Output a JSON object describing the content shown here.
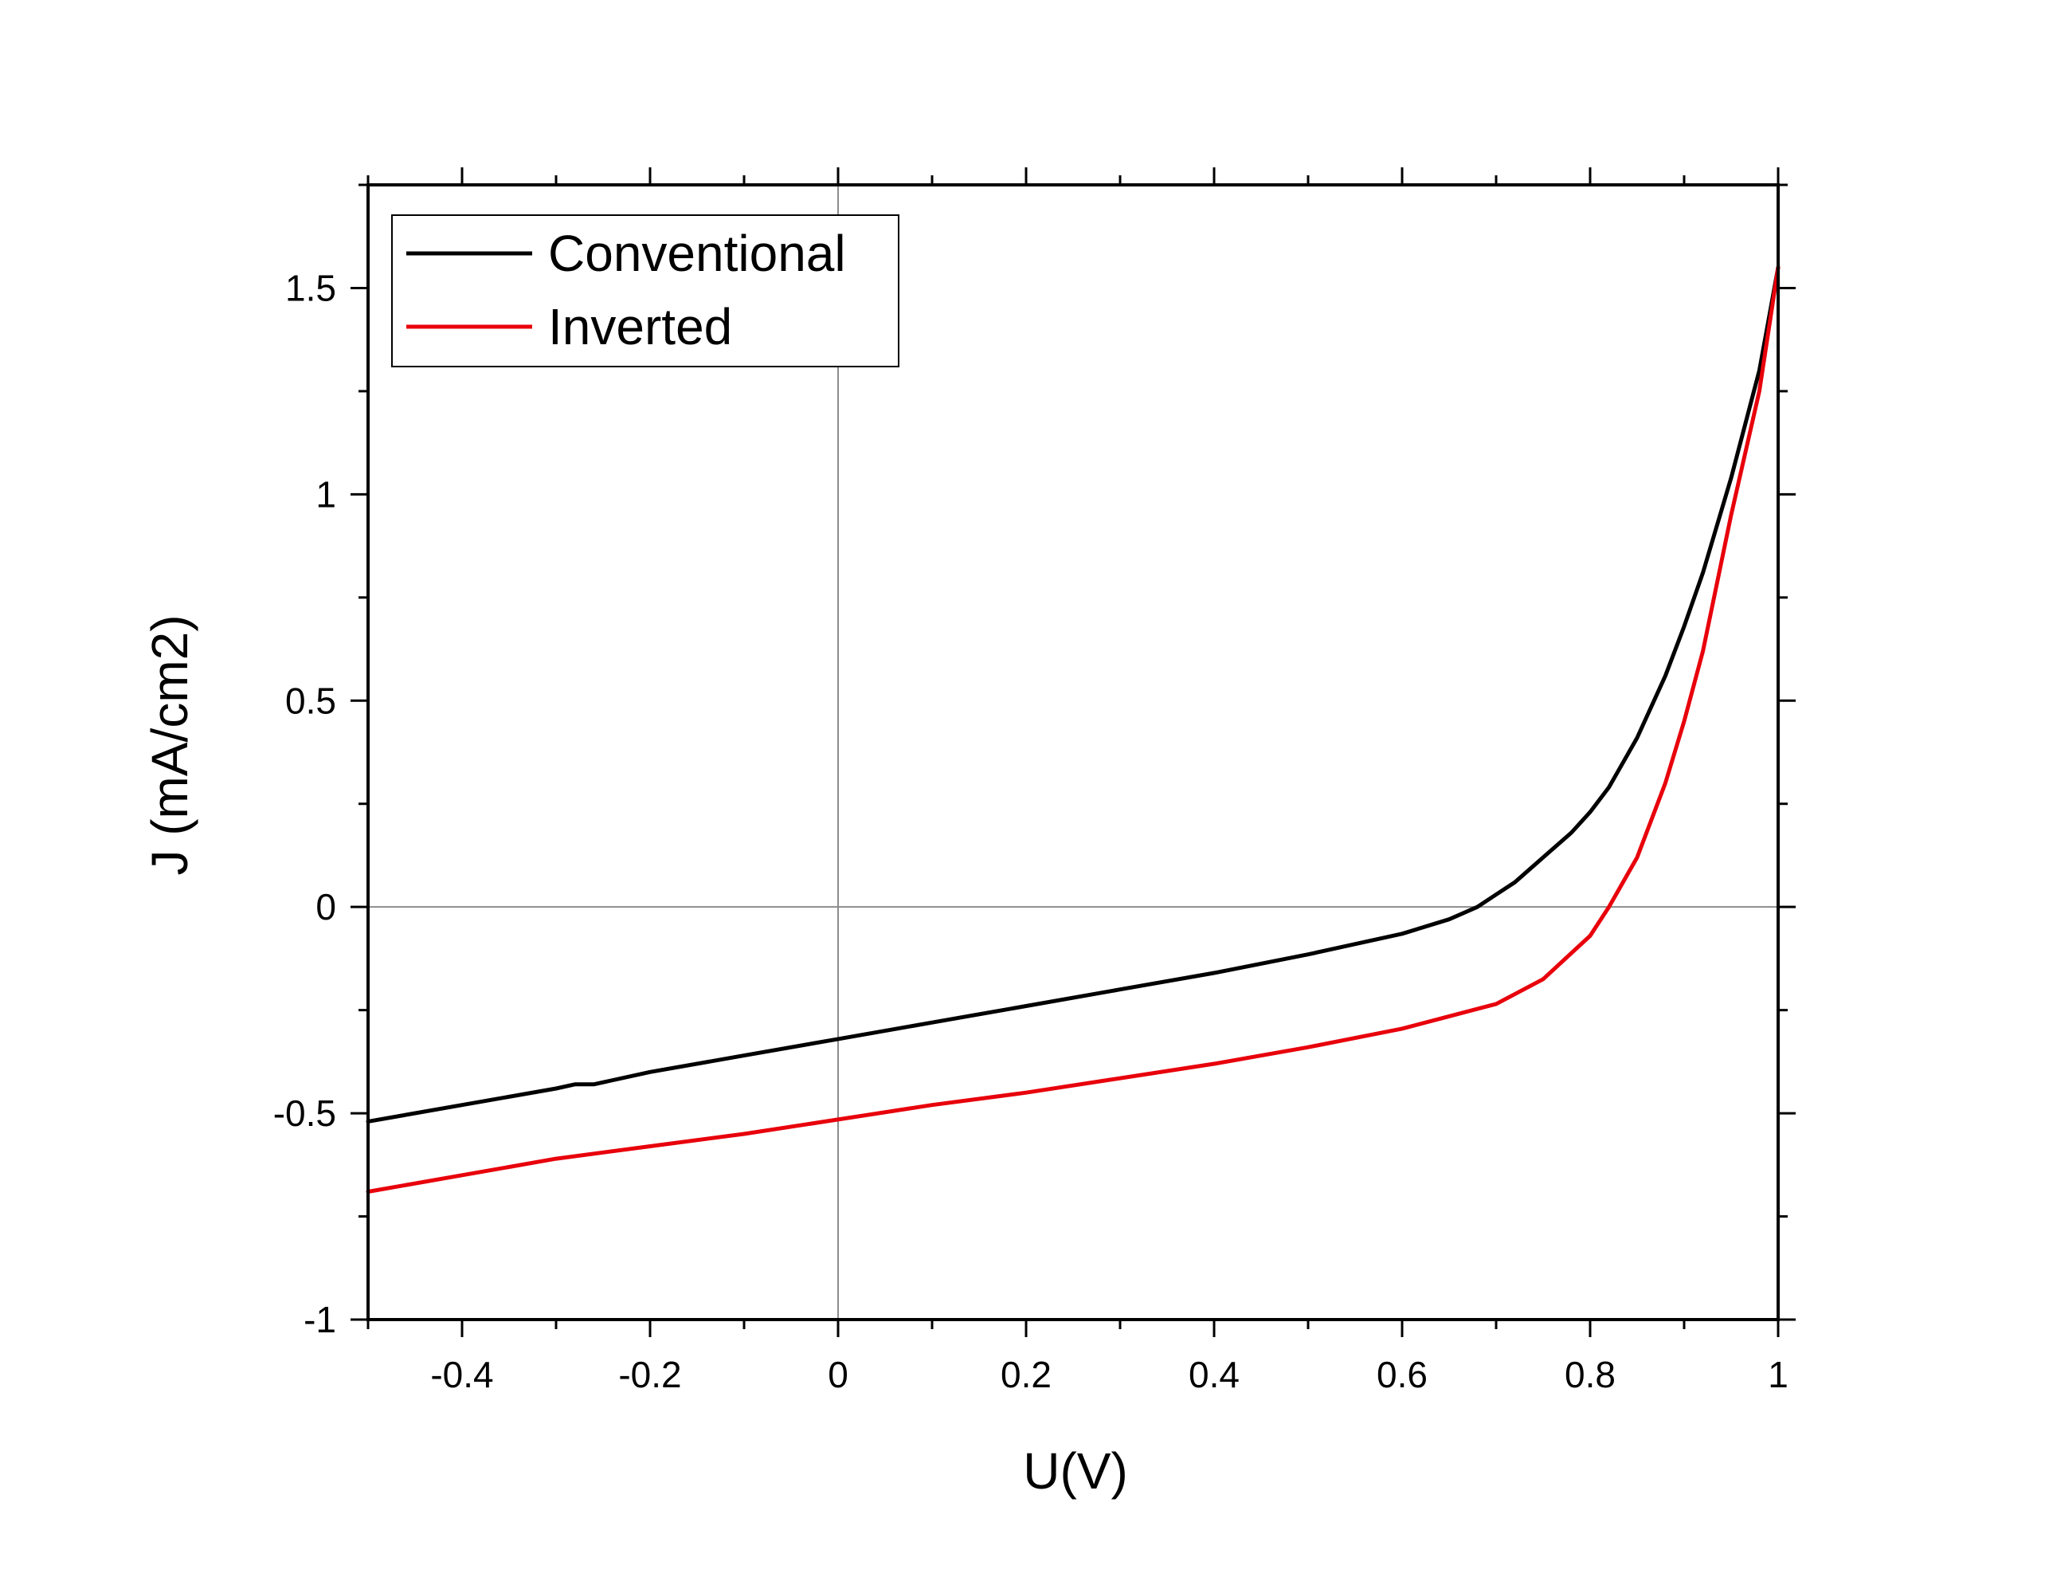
{
  "chart_data": {
    "type": "line",
    "title": "",
    "xlabel": "U(V)",
    "ylabel": "J (mA/cm2)",
    "xlim": [
      -0.5,
      1.0
    ],
    "ylim": [
      -1.0,
      1.75
    ],
    "xticks": [
      -0.4,
      -0.2,
      0,
      0.2,
      0.4,
      0.6,
      0.8,
      1
    ],
    "xtick_labels": [
      "-0.4",
      "-0.2",
      "0",
      "0.2",
      "0.4",
      "0.6",
      "0.8",
      "1"
    ],
    "yticks": [
      -1,
      -0.5,
      0,
      0.5,
      1,
      1.5
    ],
    "ytick_labels": [
      "-1",
      "-0.5",
      "0",
      "0.5",
      "1",
      "1.5"
    ],
    "zero_lines": true,
    "legend_position": "top-left",
    "series": [
      {
        "name": "Conventional",
        "color": "#000000",
        "x": [
          -0.5,
          -0.4,
          -0.3,
          -0.28,
          -0.26,
          -0.2,
          -0.1,
          0.0,
          0.1,
          0.2,
          0.3,
          0.4,
          0.5,
          0.6,
          0.65,
          0.68,
          0.7,
          0.72,
          0.75,
          0.78,
          0.8,
          0.82,
          0.85,
          0.88,
          0.9,
          0.92,
          0.95,
          0.98,
          1.0
        ],
        "y": [
          -0.52,
          -0.48,
          -0.44,
          -0.43,
          -0.43,
          -0.4,
          -0.36,
          -0.32,
          -0.28,
          -0.24,
          -0.2,
          -0.16,
          -0.115,
          -0.065,
          -0.03,
          0.0,
          0.03,
          0.06,
          0.12,
          0.18,
          0.23,
          0.29,
          0.41,
          0.56,
          0.68,
          0.81,
          1.04,
          1.3,
          1.55
        ]
      },
      {
        "name": "Inverted",
        "color": "#e8000b",
        "x": [
          -0.5,
          -0.4,
          -0.3,
          -0.2,
          -0.1,
          0.0,
          0.1,
          0.2,
          0.3,
          0.4,
          0.5,
          0.6,
          0.65,
          0.7,
          0.75,
          0.8,
          0.82,
          0.85,
          0.88,
          0.9,
          0.92,
          0.95,
          0.98,
          1.0
        ],
        "y": [
          -0.69,
          -0.65,
          -0.61,
          -0.58,
          -0.55,
          -0.515,
          -0.48,
          -0.45,
          -0.415,
          -0.38,
          -0.34,
          -0.295,
          -0.265,
          -0.235,
          -0.175,
          -0.07,
          0.0,
          0.12,
          0.3,
          0.45,
          0.62,
          0.95,
          1.25,
          1.55
        ]
      }
    ]
  }
}
